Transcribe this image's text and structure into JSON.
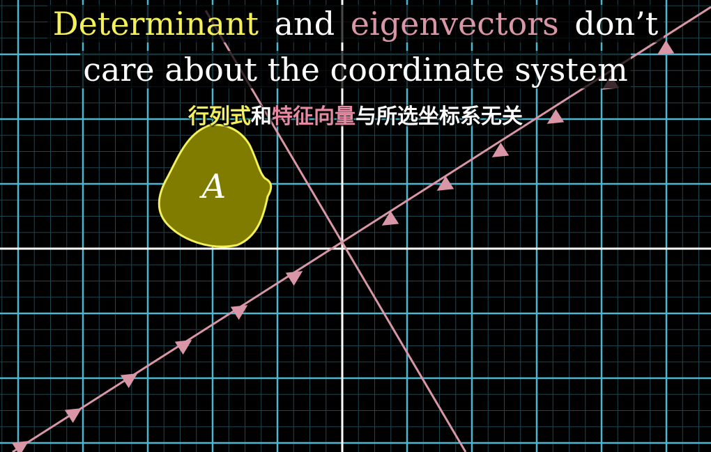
{
  "title": {
    "line1": [
      {
        "text": "Determinant",
        "color": "#f4f05a"
      },
      {
        "text": "and",
        "color": "#ffffff"
      },
      {
        "text": "eigenvectors",
        "color": "#d996a6"
      },
      {
        "text": "don’t",
        "color": "#ffffff"
      }
    ],
    "line2": "care about the coordinate system"
  },
  "subtitle": [
    {
      "text": "行列式",
      "color": "#f4f05a"
    },
    {
      "text": "和",
      "color": "#ffffff"
    },
    {
      "text": "特征向量",
      "color": "#e48aa2"
    },
    {
      "text": "与所选坐标系无关",
      "color": "#ffffff"
    }
  ],
  "region_label": "A",
  "colors": {
    "background": "#000000",
    "grid_major": "#4fb6d0",
    "grid_minor": "#1f4550",
    "axis": "#ffffff",
    "eigen_line": "#d996a6",
    "region_fill": "#807c00",
    "region_stroke": "#f4f05a"
  }
}
